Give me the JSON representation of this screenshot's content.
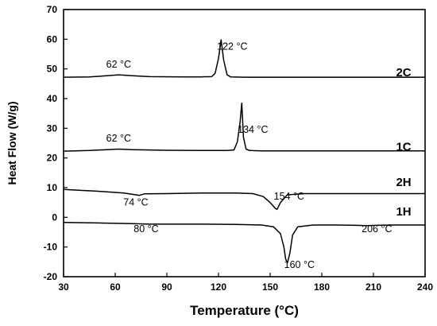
{
  "chart_data": {
    "type": "line",
    "xlabel": "Temperature (°C)",
    "ylabel": "Heat Flow (W/g)",
    "xlim": [
      30,
      240
    ],
    "ylim": [
      -20,
      70
    ],
    "xticks": [
      30,
      60,
      90,
      120,
      150,
      180,
      210,
      240
    ],
    "yticks": [
      -20,
      -10,
      0,
      10,
      20,
      30,
      40,
      50,
      60,
      70
    ],
    "grid": false,
    "series": [
      {
        "name": "2C",
        "x": [
          30,
          45,
          55,
          62,
          70,
          80,
          100,
          110,
          116,
          118,
          120,
          121.5,
          123,
          125,
          127,
          135,
          160,
          200,
          240
        ],
        "y": [
          47.2,
          47.3,
          47.7,
          48.0,
          47.7,
          47.4,
          47.3,
          47.3,
          47.4,
          48.5,
          53.5,
          59.8,
          53.0,
          48.0,
          47.3,
          47.2,
          47.2,
          47.2,
          47.2
        ]
      },
      {
        "name": "1C",
        "x": [
          30,
          45,
          55,
          62,
          70,
          90,
          110,
          125,
          129,
          131,
          132.5,
          133.5,
          134.5,
          136,
          138,
          145,
          180,
          240
        ],
        "y": [
          22.3,
          22.5,
          22.8,
          23.0,
          22.8,
          22.6,
          22.5,
          22.5,
          22.7,
          25.5,
          32.0,
          38.5,
          27.0,
          23.0,
          22.5,
          22.4,
          22.4,
          22.4
        ]
      },
      {
        "name": "2H",
        "x": [
          30,
          50,
          65,
          72,
          74,
          77,
          90,
          110,
          130,
          140,
          146,
          150,
          153,
          154,
          156,
          160,
          170,
          200,
          240
        ],
        "y": [
          9.4,
          8.8,
          8.2,
          7.6,
          7.4,
          7.9,
          8.0,
          8.2,
          8.2,
          8.0,
          7.0,
          5.0,
          3.0,
          2.7,
          5.0,
          7.6,
          8.0,
          8.0,
          8.0
        ]
      },
      {
        "name": "1H",
        "x": [
          30,
          50,
          70,
          80,
          90,
          110,
          130,
          145,
          152,
          156,
          158,
          159,
          160,
          161.5,
          163,
          166,
          175,
          190,
          200,
          206,
          212,
          220,
          240
        ],
        "y": [
          -1.7,
          -1.9,
          -2.1,
          -2.3,
          -2.3,
          -2.3,
          -2.4,
          -2.6,
          -3.2,
          -5.5,
          -10.0,
          -14.0,
          -15.4,
          -12.0,
          -6.0,
          -3.2,
          -2.6,
          -2.6,
          -2.7,
          -2.8,
          -2.7,
          -2.6,
          -2.6
        ]
      }
    ],
    "annotations": [
      {
        "text": "62 °C",
        "x": 62,
        "y": 50.5
      },
      {
        "text": "122 °C",
        "x": 128,
        "y": 56.5
      },
      {
        "text": "62 °C",
        "x": 62,
        "y": 25.5
      },
      {
        "text": "134 °C",
        "x": 140,
        "y": 28.5
      },
      {
        "text": "74 °C",
        "x": 72,
        "y": 4.0
      },
      {
        "text": "154 °C",
        "x": 161,
        "y": 6.0
      },
      {
        "text": "80 °C",
        "x": 78,
        "y": -5.0
      },
      {
        "text": "160 °C",
        "x": 167,
        "y": -17.0
      },
      {
        "text": "206 °C",
        "x": 212,
        "y": -5.0
      }
    ],
    "series_labels": [
      {
        "text": "2C",
        "x": 232,
        "y": 47.5
      },
      {
        "text": "1C",
        "x": 232,
        "y": 22.5
      },
      {
        "text": "2H",
        "x": 232,
        "y": 10.5
      },
      {
        "text": "1H",
        "x": 232,
        "y": 0.6
      }
    ]
  }
}
